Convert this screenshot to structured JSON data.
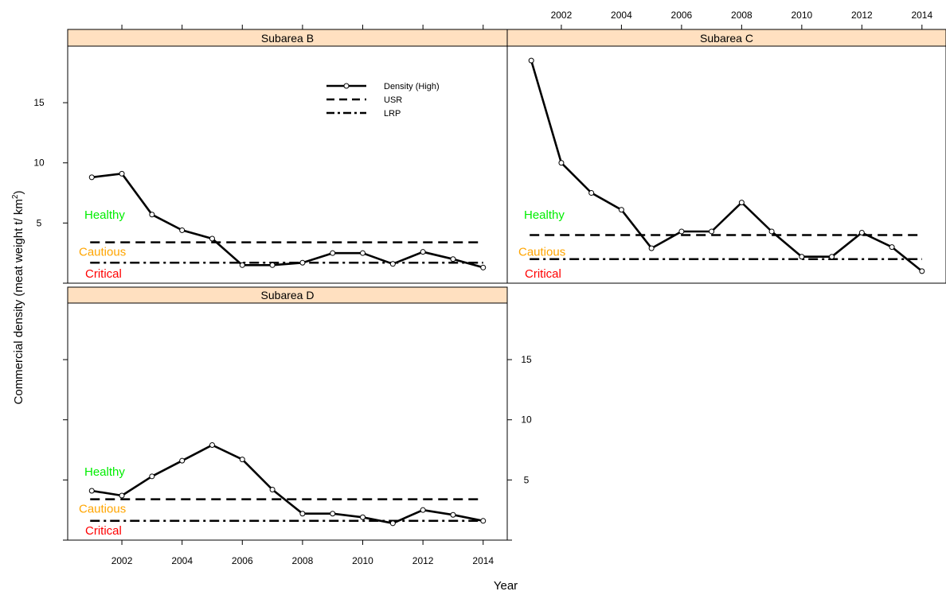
{
  "chart_data": {
    "type": "line",
    "xlabel": "Year",
    "ylabel": "Commercial density (meat weight t/ km²)",
    "ylabel_main": "Commercial density (meat weight t/ km",
    "ylabel_sup": "2",
    "ylabel_tail": ")",
    "xlim": [
      2000.2,
      2014.8
    ],
    "ylim": [
      0,
      19.7
    ],
    "x_ticks": [
      2002,
      2004,
      2006,
      2008,
      2010,
      2012,
      2014
    ],
    "y_ticks": [
      5,
      10,
      15
    ],
    "legend": {
      "position": "inside top of Subarea B panel",
      "entries": [
        {
          "label": "Density (High)",
          "style": "solid-with-points"
        },
        {
          "label": "USR",
          "style": "dashed"
        },
        {
          "label": "LRP",
          "style": "dot-dash"
        }
      ]
    },
    "zone_labels": [
      {
        "text": "Healthy",
        "color": "#00ee00"
      },
      {
        "text": "Cautious",
        "color": "#ffa500"
      },
      {
        "text": "Critical",
        "color": "#ff0000"
      }
    ],
    "strip_color": "#ffe0c0",
    "panels": [
      {
        "title": "Subarea B",
        "x": [
          2001,
          2002,
          2003,
          2004,
          2005,
          2006,
          2007,
          2008,
          2009,
          2010,
          2011,
          2012,
          2013,
          2014
        ],
        "density": [
          8.8,
          9.1,
          5.7,
          4.4,
          3.7,
          1.5,
          1.5,
          1.7,
          2.5,
          2.5,
          1.6,
          2.6,
          2.0,
          1.3
        ],
        "usr": 3.4,
        "lrp": 1.7,
        "zone_y": {
          "healthy": 5.7,
          "cautious": 2.6,
          "critical": 0.8
        }
      },
      {
        "title": "Subarea C",
        "x": [
          2001,
          2002,
          2003,
          2004,
          2005,
          2006,
          2007,
          2008,
          2009,
          2010,
          2011,
          2012,
          2013,
          2014
        ],
        "density": [
          18.5,
          10.0,
          7.5,
          6.1,
          2.9,
          4.3,
          4.3,
          6.7,
          4.3,
          2.2,
          2.2,
          4.2,
          3.0,
          1.0
        ],
        "usr": 4.0,
        "lrp": 2.0,
        "zone_y": {
          "healthy": 5.7,
          "cautious": 2.6,
          "critical": 0.8
        }
      },
      {
        "title": "Subarea D",
        "x": [
          2001,
          2002,
          2003,
          2004,
          2005,
          2006,
          2007,
          2008,
          2009,
          2010,
          2011,
          2012,
          2013,
          2014
        ],
        "density": [
          4.1,
          3.7,
          5.3,
          6.6,
          7.9,
          6.7,
          4.2,
          2.2,
          2.2,
          1.9,
          1.4,
          2.5,
          2.1,
          1.6
        ],
        "usr": 3.4,
        "lrp": 1.6,
        "zone_y": {
          "healthy": 5.7,
          "cautious": 2.6,
          "critical": 0.8
        }
      }
    ]
  }
}
